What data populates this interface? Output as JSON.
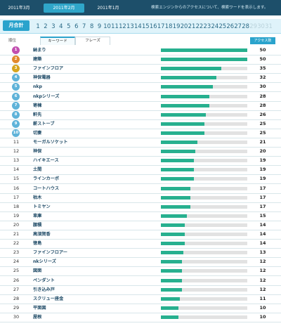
{
  "header": {
    "months": [
      {
        "label": "2011年3月",
        "active": false
      },
      {
        "label": "2011年2月",
        "active": true
      },
      {
        "label": "2011年1月",
        "active": false
      }
    ],
    "description": "検索エンジンからのアクセスについて、検索ワードを表示します。"
  },
  "days": {
    "title": "月合計",
    "items": [
      "1",
      "2",
      "3",
      "4",
      "5",
      "6",
      "7",
      "8",
      "9",
      "10",
      "11",
      "12",
      "13",
      "14",
      "15",
      "16",
      "17",
      "18",
      "19",
      "20",
      "21",
      "22",
      "23",
      "24",
      "25",
      "26",
      "27",
      "28",
      "29",
      "30",
      "31"
    ],
    "dim_from": 29
  },
  "table": {
    "rank_header": "順位",
    "tabs": [
      {
        "label": "キーワード",
        "active": true
      },
      {
        "label": "フレーズ",
        "active": false
      }
    ],
    "count_header": "アクセス数",
    "max": 50,
    "rows": [
      {
        "rank": "1",
        "keyword": "納まり",
        "count": "50",
        "badge": "#c24fb0"
      },
      {
        "rank": "2",
        "keyword": "建築",
        "count": "50",
        "badge": "#e28a2e"
      },
      {
        "rank": "3",
        "keyword": "ファインフロア",
        "count": "35",
        "badge": "#d6a51f"
      },
      {
        "rank": "4",
        "keyword": "神保電器",
        "count": "32",
        "badge": "#5fb3d9"
      },
      {
        "rank": "5",
        "keyword": "nkp",
        "count": "30",
        "badge": "#5fb3d9"
      },
      {
        "rank": "6",
        "keyword": "nkpシリーズ",
        "count": "28",
        "badge": "#5fb3d9"
      },
      {
        "rank": "7",
        "keyword": "寄棟",
        "count": "28",
        "badge": "#5fb3d9"
      },
      {
        "rank": "8",
        "keyword": "軒先",
        "count": "26",
        "badge": "#5fb3d9"
      },
      {
        "rank": "9",
        "keyword": "薪ストーブ",
        "count": "25",
        "badge": "#5fb3d9"
      },
      {
        "rank": "10",
        "keyword": "切妻",
        "count": "25",
        "badge": "#5fb3d9"
      },
      {
        "rank": "11",
        "keyword": "モーガルソケット",
        "count": "21"
      },
      {
        "rank": "12",
        "keyword": "神保",
        "count": "20"
      },
      {
        "rank": "13",
        "keyword": "ハイキエース",
        "count": "19"
      },
      {
        "rank": "14",
        "keyword": "土間",
        "count": "19"
      },
      {
        "rank": "15",
        "keyword": "ラインカーボ",
        "count": "19"
      },
      {
        "rank": "16",
        "keyword": "コートハウス",
        "count": "17"
      },
      {
        "rank": "17",
        "keyword": "枯木",
        "count": "17"
      },
      {
        "rank": "18",
        "keyword": "トミヤン",
        "count": "17"
      },
      {
        "rank": "19",
        "keyword": "車庫",
        "count": "15"
      },
      {
        "rank": "20",
        "keyword": "腰積",
        "count": "14"
      },
      {
        "rank": "21",
        "keyword": "高須賀香",
        "count": "14"
      },
      {
        "rank": "22",
        "keyword": "徳島",
        "count": "14"
      },
      {
        "rank": "23",
        "keyword": "ファインフロアー",
        "count": "13"
      },
      {
        "rank": "24",
        "keyword": "nkシリーズ",
        "count": "12"
      },
      {
        "rank": "25",
        "keyword": "図面",
        "count": "12"
      },
      {
        "rank": "26",
        "keyword": "ペンダント",
        "count": "12"
      },
      {
        "rank": "27",
        "keyword": "引き込み戸",
        "count": "12"
      },
      {
        "rank": "28",
        "keyword": "スクリュー座金",
        "count": "11"
      },
      {
        "rank": "29",
        "keyword": "平面図",
        "count": "10"
      },
      {
        "rank": "30",
        "keyword": "屋根",
        "count": "10"
      }
    ]
  }
}
